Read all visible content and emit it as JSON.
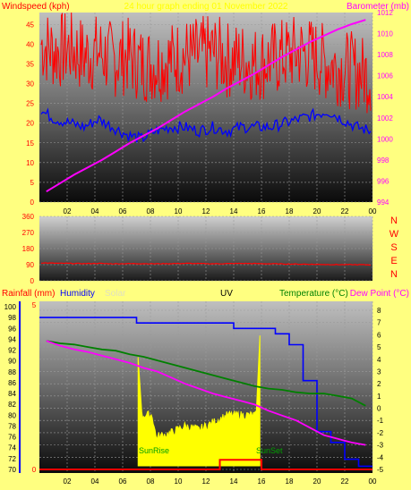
{
  "colors": {
    "page_bg": "#ffff80",
    "wind": "#ff0000",
    "gust_avg": "#0000ff",
    "baro": "#ff00ff",
    "wind_dir": "#ff0000",
    "humidity": "#0000ff",
    "temperature": "#008000",
    "dewpoint": "#ff00ff",
    "solar": "#ffff00",
    "rain": "#ff0000"
  },
  "top": {
    "left_title": "Windspeed (kph)",
    "center_title": "24 hour graph ending 01 November 2022",
    "right_title": "Barometer (mb)",
    "wind_ticks": [
      "0",
      "5",
      "10",
      "15",
      "20",
      "25",
      "30",
      "35",
      "40",
      "45"
    ],
    "baro_ticks": [
      "994",
      "996",
      "998",
      "1000",
      "1002",
      "1004",
      "1006",
      "1008",
      "1010",
      "1012"
    ]
  },
  "middle": {
    "dir_ticks": [
      "0",
      "90",
      "180",
      "270",
      "360"
    ],
    "compass": [
      "N",
      "W",
      "S",
      "E",
      "N"
    ]
  },
  "bottom": {
    "title_rain": "Rainfall (mm)",
    "title_humidity": "Humidity",
    "title_solar": "Solar",
    "title_uv": "UV",
    "title_temp": "Temperature (°C)",
    "title_dew": "Dew Point (°C)",
    "humidity_ticks": [
      "70",
      "72",
      "74",
      "76",
      "78",
      "80",
      "82",
      "84",
      "86",
      "88",
      "90",
      "92",
      "94",
      "96",
      "98",
      "100"
    ],
    "temp_ticks": [
      "-5",
      "-4",
      "-3",
      "-2",
      "-1",
      "0",
      "1",
      "2",
      "3",
      "4",
      "5",
      "6",
      "7",
      "8"
    ],
    "rain_top_tick": "5",
    "rain_bottom_tick": "0",
    "sunrise": "SunRise",
    "sunset": "SunSet"
  },
  "time_labels": [
    "02",
    "04",
    "06",
    "08",
    "10",
    "12",
    "14",
    "16",
    "18",
    "20",
    "22",
    "00"
  ],
  "chart_data": [
    {
      "type": "line",
      "title": "24 hour graph ending 01 November 2022",
      "x": [
        "01",
        "02",
        "03",
        "04",
        "05",
        "06",
        "07",
        "08",
        "09",
        "10",
        "11",
        "12",
        "13",
        "14",
        "15",
        "16",
        "17",
        "18",
        "19",
        "20",
        "21",
        "22",
        "23",
        "00"
      ],
      "series": [
        {
          "name": "Windspeed (kph)",
          "axis": "left",
          "values": [
            40,
            38,
            39,
            37,
            38,
            36,
            37,
            35,
            35,
            36,
            37,
            37,
            38,
            36,
            36,
            35,
            36,
            37,
            38,
            37,
            35,
            34,
            33,
            32
          ]
        },
        {
          "name": "Barometer (mb)",
          "axis": "right",
          "values": [
            995.0,
            995.8,
            996.6,
            997.3,
            998.0,
            998.8,
            999.6,
            1000.3,
            1001.0,
            1001.8,
            1002.6,
            1003.3,
            1004.0,
            1004.8,
            1005.5,
            1006.2,
            1007.0,
            1007.8,
            1008.5,
            1009.2,
            1009.8,
            1010.4,
            1010.9,
            1011.3
          ]
        }
      ],
      "gust_avg": [
        23,
        21,
        20,
        19,
        21,
        19,
        17,
        16,
        18,
        19,
        19,
        18,
        19,
        18,
        19,
        19,
        19,
        20,
        21,
        22,
        23,
        21,
        19,
        18
      ],
      "ylim_left": [
        0,
        48
      ],
      "ylim_right": [
        994,
        1012
      ]
    },
    {
      "type": "line",
      "title": "",
      "x": [
        "01",
        "02",
        "03",
        "04",
        "05",
        "06",
        "07",
        "08",
        "09",
        "10",
        "11",
        "12",
        "13",
        "14",
        "15",
        "16",
        "17",
        "18",
        "19",
        "20",
        "21",
        "22",
        "23",
        "00"
      ],
      "series": [
        {
          "name": "Wind direction",
          "values": [
            100,
            98,
            97,
            96,
            97,
            95,
            96,
            96,
            95,
            96,
            97,
            96,
            95,
            96,
            97,
            96,
            95,
            94,
            93,
            92,
            91,
            90,
            90,
            89
          ]
        }
      ],
      "ylim": [
        0,
        360
      ]
    },
    {
      "type": "line",
      "title": "",
      "x": [
        "01",
        "02",
        "03",
        "04",
        "05",
        "06",
        "07",
        "08",
        "09",
        "10",
        "11",
        "12",
        "13",
        "14",
        "15",
        "16",
        "17",
        "18",
        "19",
        "20",
        "21",
        "22",
        "23",
        "00"
      ],
      "series": [
        {
          "name": "Humidity",
          "axis": "left",
          "values": [
            98,
            98,
            98,
            98,
            98,
            98,
            98,
            97,
            97,
            97,
            97,
            97,
            97,
            97,
            96,
            96,
            96,
            95,
            93,
            88,
            76,
            74,
            73,
            72
          ]
        },
        {
          "name": "Temperature (°C)",
          "axis": "right",
          "values": [
            5.5,
            5.3,
            5.2,
            5.0,
            4.8,
            4.7,
            4.4,
            4.2,
            3.9,
            3.6,
            3.3,
            3.0,
            2.7,
            2.4,
            2.1,
            1.8,
            1.6,
            1.5,
            1.3,
            1.2,
            1.2,
            1.0,
            0.8,
            0.2
          ]
        },
        {
          "name": "Dew Point (°C)",
          "axis": "right",
          "values": [
            5.5,
            5.1,
            4.8,
            4.6,
            4.3,
            4.0,
            3.7,
            3.3,
            3.0,
            2.5,
            2.0,
            1.6,
            1.2,
            0.9,
            0.6,
            0.3,
            -0.2,
            -0.6,
            -1.0,
            -1.6,
            -2.2,
            -2.5,
            -2.8,
            -3.0
          ]
        },
        {
          "name": "Solar",
          "values": [
            0,
            0,
            0,
            0,
            0,
            0,
            0,
            150,
            40,
            45,
            55,
            50,
            60,
            70,
            80,
            180,
            0,
            0,
            0,
            0,
            0,
            0,
            0,
            0
          ]
        }
      ],
      "rainfall": [
        0,
        0,
        0,
        0,
        0,
        0,
        0,
        0,
        0,
        0,
        0,
        0,
        0,
        0.3,
        0.3,
        0.3,
        0,
        0,
        0,
        0,
        0,
        0,
        0,
        0
      ],
      "ylim_humidity": [
        70,
        100
      ],
      "ylim_temp": [
        -5,
        8
      ],
      "ylim_rain": [
        0,
        5
      ]
    }
  ]
}
